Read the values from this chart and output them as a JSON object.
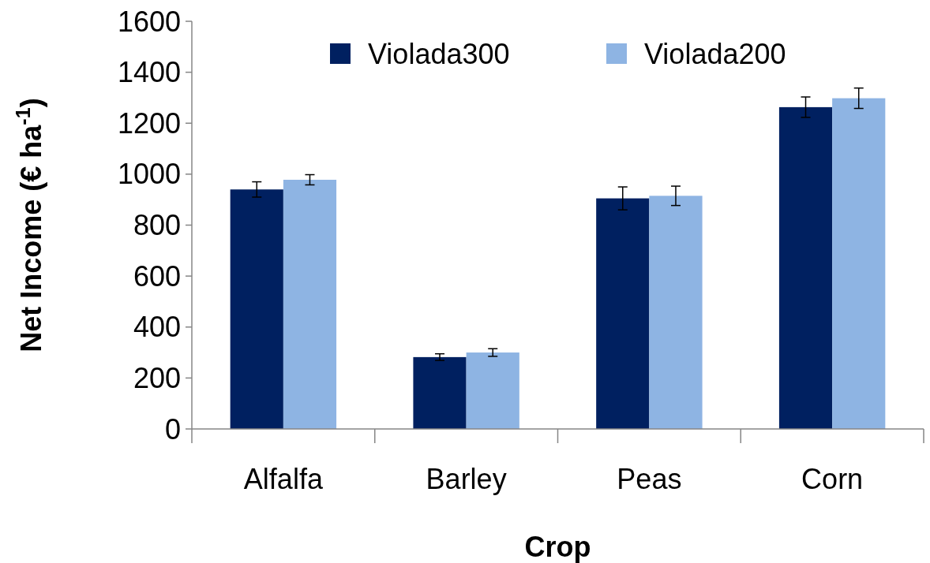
{
  "chart_data": {
    "type": "bar",
    "xlabel": "Crop",
    "ylabel": "Net Income (€ ha$^{-1}$)",
    "categories": [
      "Alfalfa",
      "Barley",
      "Peas",
      "Corn"
    ],
    "series": [
      {
        "name": "Violada300",
        "color": "#002060",
        "values": [
          940,
          282,
          905,
          1263
        ],
        "errors": [
          30,
          13,
          45,
          40
        ]
      },
      {
        "name": "Violada200",
        "color": "#8eb4e3",
        "values": [
          978,
          300,
          915,
          1298
        ],
        "errors": [
          20,
          15,
          38,
          40
        ]
      }
    ],
    "ylim": [
      0,
      1600
    ],
    "yticks": [
      0,
      200,
      400,
      600,
      800,
      1000,
      1200,
      1400,
      1600
    ],
    "grid": false,
    "legend": "top"
  }
}
